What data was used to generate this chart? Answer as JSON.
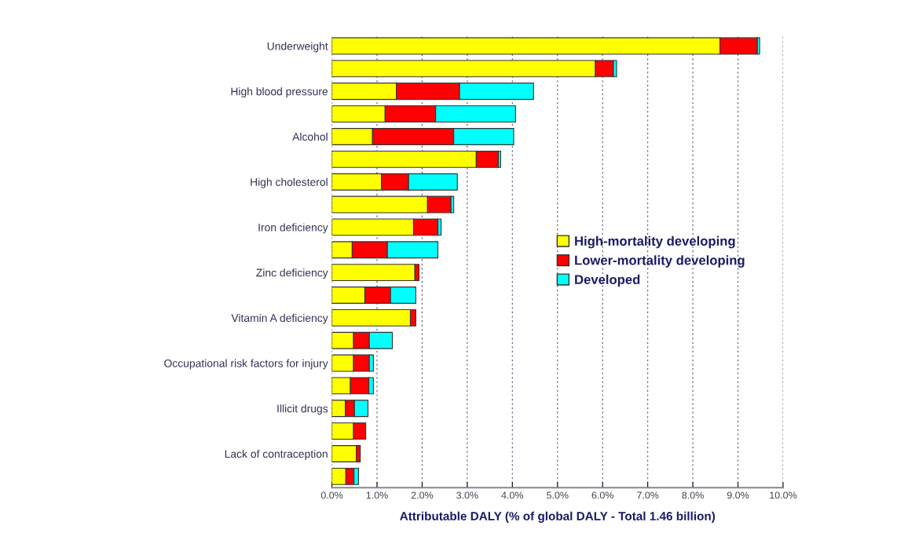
{
  "chart_data": {
    "type": "bar",
    "orientation": "horizontal",
    "stacked": true,
    "xlabel": "Attributable DALY (% of global DALY - Total 1.46 billion)",
    "categories": [
      "Underweight",
      null,
      "High blood pressure",
      null,
      "Alcohol",
      null,
      "High cholesterol",
      null,
      "Iron deficiency",
      null,
      "Zinc deficiency",
      null,
      "Vitamin A deficiency",
      null,
      "Occupational risk factors for injury",
      null,
      "Illicit drugs",
      null,
      "Lack of contraception",
      null
    ],
    "series": [
      {
        "name": "High-mortality developing",
        "color": "#ffff00",
        "values": [
          8.6,
          5.84,
          1.43,
          1.18,
          0.9,
          3.2,
          1.1,
          2.12,
          1.81,
          0.45,
          1.84,
          0.73,
          1.74,
          0.48,
          0.48,
          0.41,
          0.3,
          0.48,
          0.54,
          0.31
        ]
      },
      {
        "name": "Lower-mortality developing",
        "color": "#ff0000",
        "values": [
          0.83,
          0.4,
          1.4,
          1.12,
          1.8,
          0.49,
          0.6,
          0.52,
          0.54,
          0.78,
          0.09,
          0.57,
          0.12,
          0.35,
          0.35,
          0.41,
          0.2,
          0.27,
          0.09,
          0.18
        ]
      },
      {
        "name": "Developed",
        "color": "#00ffff",
        "values": [
          0.05,
          0.07,
          1.64,
          1.77,
          1.33,
          0.05,
          1.08,
          0.06,
          0.07,
          1.12,
          null,
          0.56,
          null,
          0.51,
          0.09,
          0.1,
          0.3,
          null,
          null,
          0.1
        ]
      }
    ],
    "xlim": [
      0,
      10
    ],
    "xticks": [
      {
        "value": 0,
        "label": "0.0%"
      },
      {
        "value": 1,
        "label": "1.0%"
      },
      {
        "value": 2,
        "label": "2.0%"
      },
      {
        "value": 3,
        "label": "3.0%"
      },
      {
        "value": 4,
        "label": "4.0%"
      },
      {
        "value": 5,
        "label": "5.0%"
      },
      {
        "value": 6,
        "label": "6.0%"
      },
      {
        "value": 7,
        "label": "7.0%"
      },
      {
        "value": 8,
        "label": "8.0%"
      },
      {
        "value": 9,
        "label": "9.0%"
      },
      {
        "value": 10,
        "label": "10.0%"
      }
    ],
    "grid": "x",
    "legend": "center right"
  }
}
